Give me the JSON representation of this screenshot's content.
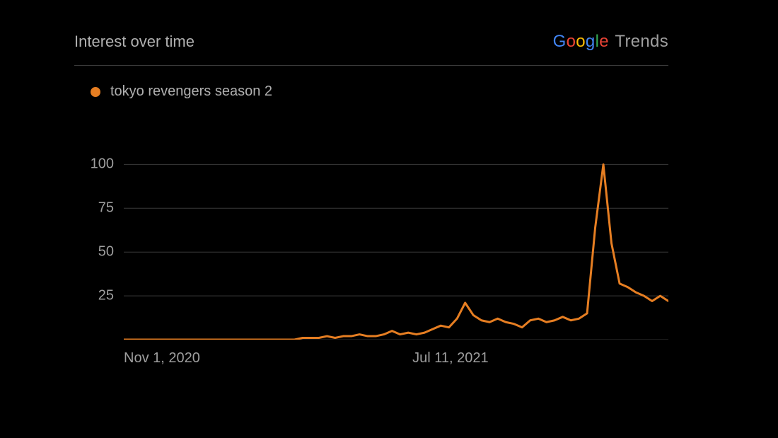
{
  "header": {
    "title": "Interest over time",
    "brand_prefix_letters": [
      {
        "c": "G",
        "cls": "g-blue"
      },
      {
        "c": "o",
        "cls": "g-red"
      },
      {
        "c": "o",
        "cls": "g-yellow"
      },
      {
        "c": "g",
        "cls": "g-blue"
      },
      {
        "c": "l",
        "cls": "g-green"
      },
      {
        "c": "e",
        "cls": "g-red"
      }
    ],
    "brand_suffix": " Trends"
  },
  "legend": {
    "color": "#e67e22",
    "label": "tokyo revengers season 2"
  },
  "chart": {
    "type": "line",
    "background_color": "#000000",
    "line_color": "#e67e22",
    "line_width": 3,
    "grid_color": "#3a3a3a",
    "grid_width": 1,
    "ymin": 0,
    "ymax": 105,
    "yticks": [
      25,
      50,
      75,
      100
    ],
    "xlabels": [
      {
        "text": "Nov 1, 2020",
        "frac": 0.0
      },
      {
        "text": "Jul 11, 2021",
        "frac": 0.53
      }
    ],
    "label_fontsize": 20,
    "label_color": "#9e9e9e",
    "series": [
      0,
      0,
      0,
      0,
      0,
      0,
      0,
      0,
      0,
      0,
      0,
      0,
      0,
      0,
      0,
      0,
      0,
      0,
      0,
      0,
      0,
      0,
      1,
      1,
      1,
      2,
      1,
      2,
      2,
      3,
      2,
      2,
      3,
      5,
      3,
      4,
      3,
      4,
      6,
      8,
      7,
      12,
      21,
      14,
      11,
      10,
      12,
      10,
      9,
      7,
      11,
      12,
      10,
      11,
      13,
      11,
      12,
      15,
      64,
      100,
      55,
      32,
      30,
      27,
      25,
      22,
      25,
      22
    ]
  }
}
